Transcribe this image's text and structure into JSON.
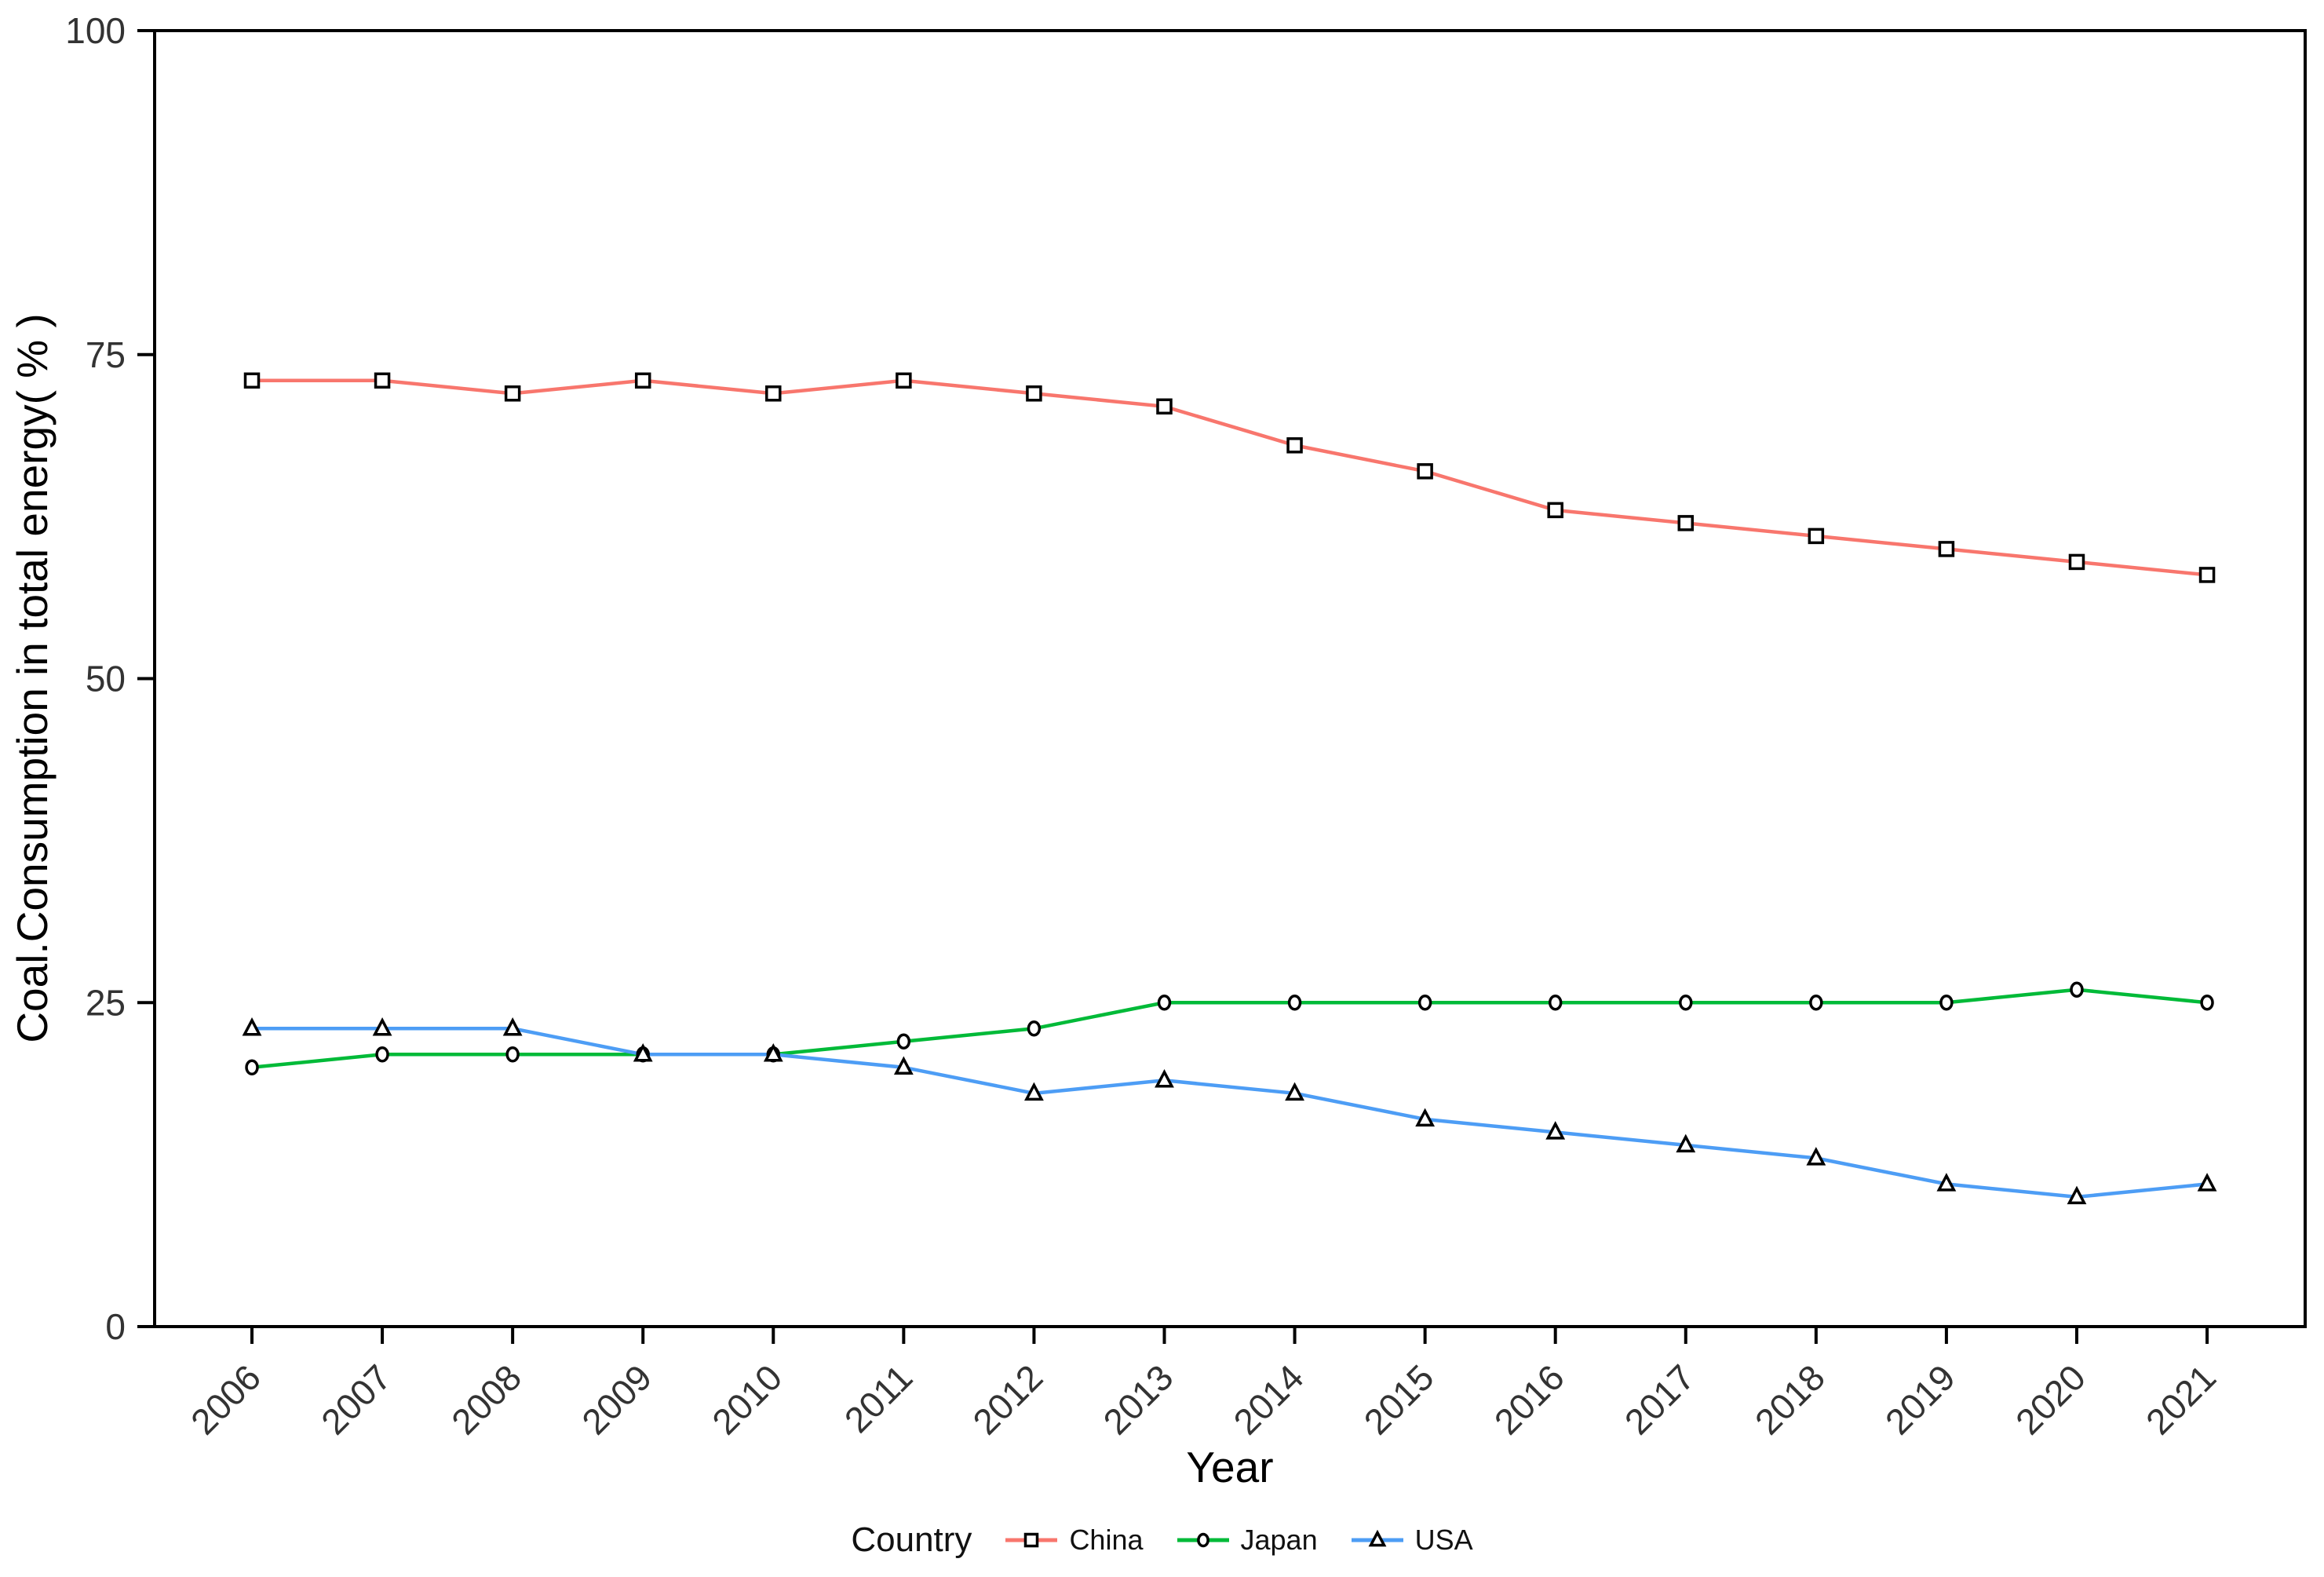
{
  "figure": {
    "background_color": "#ffffff",
    "panel_border_color": "#000000",
    "tick_color": "#000000",
    "tick_text_color": "#333333",
    "marker_outline_color": "#000000",
    "marker_fill_color": "#ffffff"
  },
  "chart_data": {
    "type": "line",
    "title": "",
    "xlabel": "Year",
    "ylabel": "Coal.Consumption in total energy( % )",
    "categories": [
      "2006",
      "2007",
      "2008",
      "2009",
      "2010",
      "2011",
      "2012",
      "2013",
      "2014",
      "2015",
      "2016",
      "2017",
      "2018",
      "2019",
      "2020",
      "2021"
    ],
    "ylim": [
      0,
      100
    ],
    "yticks": [
      0,
      25,
      50,
      75,
      100
    ],
    "grid": false,
    "legend": {
      "title": "Country",
      "position": "bottom"
    },
    "series": [
      {
        "name": "China",
        "color": "#F8766D",
        "marker": "square",
        "values": [
          73,
          73,
          72,
          73,
          72,
          73,
          72,
          71,
          68,
          66,
          63,
          62,
          61,
          60,
          59,
          58
        ]
      },
      {
        "name": "Japan",
        "color": "#00BA38",
        "marker": "circle",
        "values": [
          20,
          21,
          21,
          21,
          21,
          22,
          23,
          25,
          25,
          25,
          25,
          25,
          25,
          25,
          26,
          25
        ]
      },
      {
        "name": "USA",
        "color": "#4D9DF5",
        "marker": "triangle",
        "values": [
          23,
          23,
          23,
          21,
          21,
          20,
          18,
          19,
          18,
          16,
          15,
          14,
          13,
          11,
          10,
          11
        ]
      }
    ]
  }
}
